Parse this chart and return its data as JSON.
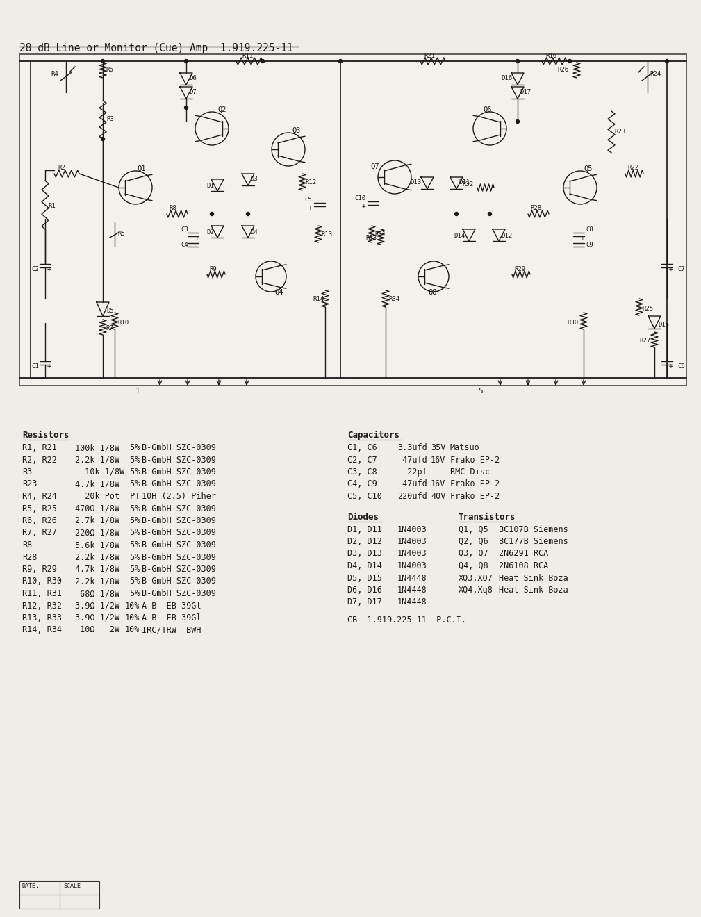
{
  "title": "28 dB Line or Monitor (Cue) Amp  1.919.225-11",
  "bg_color": "#f0ede8",
  "line_color": "#1a1a1a",
  "text_color": "#1a1a1a",
  "title_fontsize": 10.5,
  "body_fontsize": 8.5,
  "resistors_header": "Resistors",
  "resistors": [
    [
      "R1, R21",
      "100k 1/8W",
      " 5%",
      "B-GmbH SZC-0309"
    ],
    [
      "R2, R22",
      "2.2k 1/8W",
      " 5%",
      "B-GmbH SZC-0309"
    ],
    [
      "R3",
      "  10k 1/8W",
      " 5%",
      "B-GmbH SZC-0309"
    ],
    [
      "R23",
      "4.7k 1/8W",
      " 5%",
      "B-GmbH SZC-0309"
    ],
    [
      "R4, R24",
      "  20k Pot",
      " PT",
      "10H (2.5) Piher"
    ],
    [
      "R5, R25",
      "470Ω 1/8W",
      " 5%",
      "B-GmbH SZC-0309"
    ],
    [
      "R6, R26",
      "2.7k 1/8W",
      " 5%",
      "B-GmbH SZC-0309"
    ],
    [
      "R7, R27",
      "220Ω 1/8W",
      " 5%",
      "B-GmbH SZC-0309"
    ],
    [
      "R8",
      "5.6k 1/8W",
      " 5%",
      "B-GmbH SZC-0309"
    ],
    [
      "R28",
      "2.2k 1/8W",
      " 5%",
      "B-GmbH SZC-0309"
    ],
    [
      "R9, R29",
      "4.7k 1/8W",
      " 5%",
      "B-GmbH SZC-0309"
    ],
    [
      "R10, R30",
      "2.2k 1/8W",
      " 5%",
      "B-GmbH SZC-0309"
    ],
    [
      "R11, R31",
      " 68Ω 1/8W",
      " 5%",
      "B-GmbH SZC-0309"
    ],
    [
      "R12, R32",
      "3.9Ω 1/2W",
      "10%",
      "A-B  EB-39Gl"
    ],
    [
      "R13, R33",
      "3.9Ω 1/2W",
      "10%",
      "A-B  EB-39Gl"
    ],
    [
      "R14, R34",
      " 10Ω   2W",
      "10%",
      "IRC/TRW  BWH"
    ]
  ],
  "capacitors_header": "Capacitors",
  "capacitors": [
    [
      "C1, C6",
      "3.3ufd",
      "35V",
      "Matsuo"
    ],
    [
      "C2, C7",
      " 47ufd",
      "16V",
      "Frako EP-2"
    ],
    [
      "C3, C8",
      "  22pf",
      "",
      "RMC Disc"
    ],
    [
      "C4, C9",
      " 47ufd",
      "16V",
      "Frako EP-2"
    ],
    [
      "C5, C10",
      "220ufd",
      "40V",
      "Frako EP-2"
    ]
  ],
  "diodes_header": "Diodes",
  "diodes": [
    [
      "D1, D11",
      "1N4003"
    ],
    [
      "D2, D12",
      "1N4003"
    ],
    [
      "D3, D13",
      "1N4003"
    ],
    [
      "D4, D14",
      "1N4003"
    ],
    [
      "D5, D15",
      "1N4448"
    ],
    [
      "D6, D16",
      "1N4448"
    ],
    [
      "D7, D17",
      "1N4448"
    ]
  ],
  "transistors_header": "Transistors",
  "transistors": [
    [
      "Q1, Q5",
      "BC107B Siemens"
    ],
    [
      "Q2, Q6",
      "BC177B Siemens"
    ],
    [
      "Q3, Q7",
      "2N6291 RCA"
    ],
    [
      "Q4, Q8",
      "2N6108 RCA"
    ],
    [
      "XQ3,XQ7",
      "Heat Sink Boza"
    ],
    [
      "XQ4,Xq8",
      "Heat Sink Boza"
    ]
  ],
  "cb_line": "CB  1.919.225-11  P.C.I."
}
